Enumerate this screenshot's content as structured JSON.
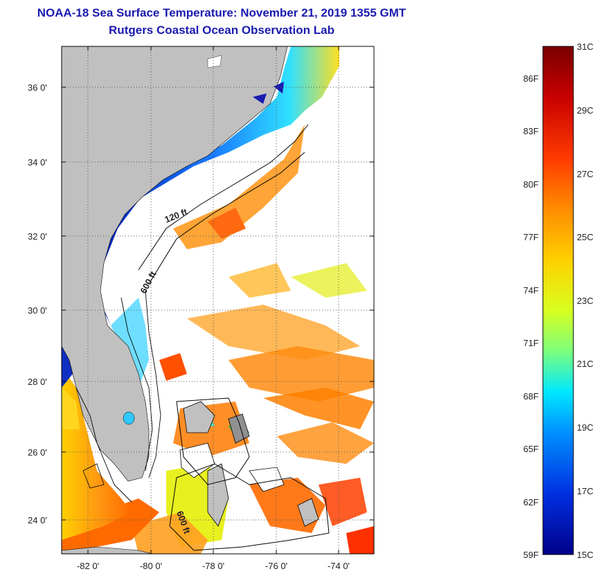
{
  "title": "NOAA-18 Sea Surface Temperature:  November 21, 2019 1355 GMT",
  "subtitle": "Rutgers Coastal Ocean Observation Lab",
  "lat_labels": [
    "36 0'",
    "34 0'",
    "32 0'",
    "30 0'",
    "28 0'",
    "26 0'",
    "24 0'"
  ],
  "lon_labels": [
    "-82 0'",
    "-80 0'",
    "-78 0'",
    "-76 0'",
    "-74 0'"
  ],
  "contours": {
    "shelf": "120 ft",
    "slope": "600 ft",
    "bahamas": "600 ft"
  },
  "colorbar": {
    "fahrenheit": [
      "86F",
      "83F",
      "80F",
      "77F",
      "74F",
      "71F",
      "68F",
      "65F",
      "62F",
      "59F"
    ],
    "celsius": [
      "31C",
      "29C",
      "27C",
      "25C",
      "23C",
      "21C",
      "19C",
      "17C",
      "15C"
    ],
    "colors": [
      "#7a0000",
      "#c80000",
      "#ff3a00",
      "#ff8c00",
      "#ffd000",
      "#d8ff20",
      "#7cff7c",
      "#00e8ff",
      "#0090ff",
      "#0030e0",
      "#00008a"
    ]
  },
  "colors": {
    "land": "#c0c0c0",
    "grid": "#555555",
    "title": "#1a1ab0"
  }
}
